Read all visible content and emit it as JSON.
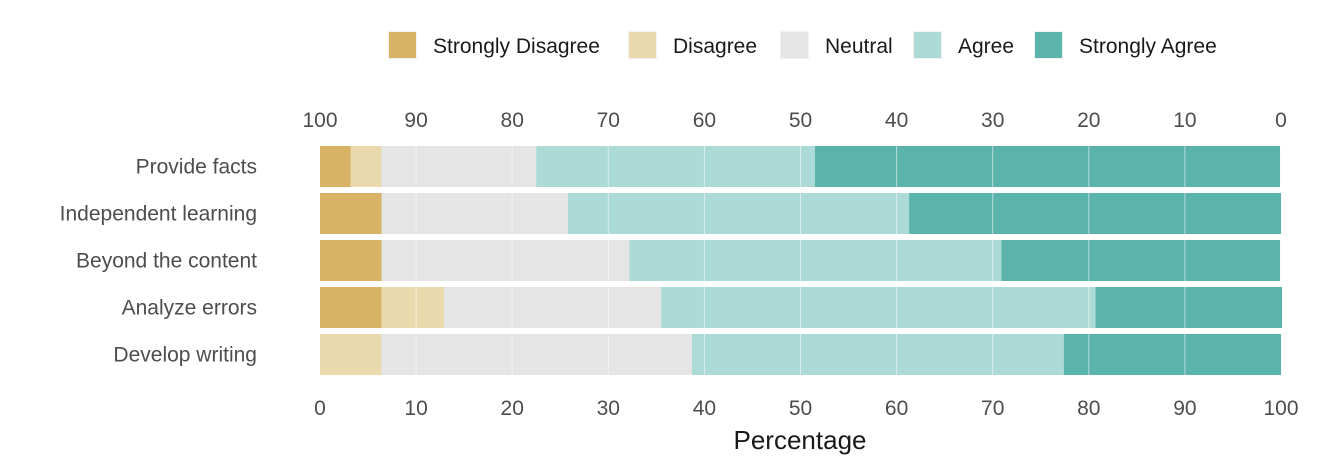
{
  "chart_data": {
    "type": "bar",
    "orientation": "horizontal",
    "stacked": true,
    "title": "",
    "xlabel": "Percentage",
    "ylabel": "",
    "xlim": [
      0,
      100
    ],
    "categories": [
      "Provide facts",
      "Independent learning",
      "Beyond the content",
      "Analyze errors",
      "Develop writing"
    ],
    "series": [
      {
        "name": "Strongly Disagree",
        "color": "#d9b365",
        "values": [
          3.2,
          6.4,
          6.4,
          6.4,
          0
        ]
      },
      {
        "name": "Disagree",
        "color": "#ebd9ae",
        "values": [
          3.2,
          0,
          0,
          6.5,
          6.4
        ]
      },
      {
        "name": "Neutral",
        "color": "#e5e5e5",
        "values": [
          16.1,
          19.4,
          25.8,
          22.6,
          32.3
        ]
      },
      {
        "name": "Agree",
        "color": "#acdad6",
        "values": [
          29.0,
          35.5,
          38.7,
          45.2,
          38.7
        ]
      },
      {
        "name": "Strongly Agree",
        "color": "#5ab4ac",
        "values": [
          48.4,
          38.7,
          29.0,
          19.4,
          22.6
        ]
      }
    ],
    "bottom_ticks": [
      "0",
      "10",
      "20",
      "30",
      "40",
      "50",
      "60",
      "70",
      "80",
      "90",
      "100"
    ],
    "top_ticks": [
      "100",
      "90",
      "80",
      "70",
      "60",
      "50",
      "40",
      "30",
      "20",
      "10",
      "0"
    ],
    "grid": true,
    "legend_position": "top"
  }
}
